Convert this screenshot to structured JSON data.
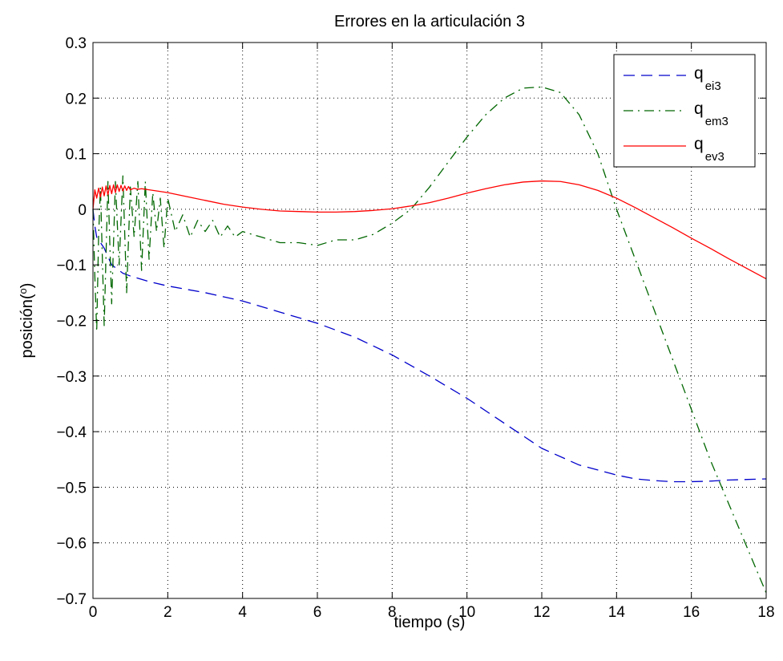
{
  "chart_data": {
    "type": "line",
    "title": "Errores en la articulación 3",
    "xlabel": "tiempo (s)",
    "ylabel": "posición(",
    "ylabel_sup": "o",
    "ylabel_close": ")",
    "xlim": [
      0,
      18
    ],
    "ylim": [
      -0.7,
      0.3
    ],
    "xticks": [
      0,
      2,
      4,
      6,
      8,
      10,
      12,
      14,
      16,
      18
    ],
    "yticks": [
      -0.7,
      -0.6,
      -0.5,
      -0.4,
      -0.3,
      -0.2,
      -0.1,
      0,
      0.1,
      0.2,
      0.3
    ],
    "xtick_labels": [
      "0",
      "2",
      "4",
      "6",
      "8",
      "10",
      "12",
      "14",
      "16",
      "18"
    ],
    "ytick_labels": [
      "−0.7",
      "−0.6",
      "−0.5",
      "−0.4",
      "−0.3",
      "−0.2",
      "−0.1",
      "0",
      "0.1",
      "0.2",
      "0.3"
    ],
    "grid": true,
    "legend_position": "top-right",
    "series": [
      {
        "legend_main": "q",
        "legend_sub": "ei3",
        "color": "#0000cc",
        "dash": "dashed",
        "x": [
          0,
          0.05,
          0.1,
          0.2,
          0.3,
          0.5,
          0.8,
          1,
          1.5,
          2,
          3,
          4,
          5,
          6,
          7,
          8,
          9,
          10,
          11,
          12,
          13,
          14,
          14.5,
          15,
          15.5,
          16,
          16.5,
          17,
          17.5,
          18
        ],
        "y": [
          0,
          -0.03,
          -0.05,
          -0.06,
          -0.07,
          -0.1,
          -0.115,
          -0.12,
          -0.13,
          -0.138,
          -0.15,
          -0.165,
          -0.185,
          -0.205,
          -0.23,
          -0.262,
          -0.3,
          -0.34,
          -0.385,
          -0.43,
          -0.46,
          -0.478,
          -0.485,
          -0.488,
          -0.49,
          -0.49,
          -0.489,
          -0.487,
          -0.486,
          -0.485
        ]
      },
      {
        "legend_main": "q",
        "legend_sub": "em3",
        "color": "#006600",
        "dash": "dashdot",
        "x": [
          0,
          0.05,
          0.1,
          0.15,
          0.2,
          0.3,
          0.4,
          0.5,
          0.6,
          0.7,
          0.8,
          0.9,
          1.0,
          1.1,
          1.2,
          1.3,
          1.4,
          1.5,
          1.6,
          1.7,
          1.8,
          1.9,
          2.0,
          2.2,
          2.4,
          2.6,
          2.8,
          3.0,
          3.2,
          3.4,
          3.6,
          3.8,
          4.0,
          4.5,
          5.0,
          5.5,
          6.0,
          6.5,
          7.0,
          7.5,
          8.0,
          8.5,
          9.0,
          9.5,
          10,
          10.5,
          11,
          11.5,
          12,
          12.5,
          13,
          13.5,
          14,
          14.5,
          15,
          15.5,
          16,
          16.5,
          17,
          17.5,
          18
        ],
        "y": [
          0,
          -0.12,
          -0.22,
          -0.05,
          0.04,
          -0.21,
          0.05,
          -0.17,
          0.05,
          -0.1,
          0.06,
          -0.15,
          0.04,
          -0.05,
          0.05,
          -0.11,
          0.05,
          -0.09,
          0.03,
          -0.04,
          0.02,
          -0.07,
          0.02,
          -0.04,
          -0.01,
          -0.05,
          -0.02,
          -0.04,
          -0.02,
          -0.05,
          -0.03,
          -0.05,
          -0.04,
          -0.05,
          -0.06,
          -0.06,
          -0.065,
          -0.055,
          -0.055,
          -0.045,
          -0.025,
          0.0,
          0.04,
          0.085,
          0.13,
          0.17,
          0.2,
          0.218,
          0.22,
          0.21,
          0.17,
          0.1,
          0.0,
          -0.09,
          -0.18,
          -0.27,
          -0.36,
          -0.45,
          -0.53,
          -0.61,
          -0.69
        ]
      },
      {
        "legend_main": "q",
        "legend_sub": "ev3",
        "color": "#ff0000",
        "dash": "solid",
        "x": [
          0,
          0.05,
          0.1,
          0.15,
          0.2,
          0.25,
          0.3,
          0.35,
          0.4,
          0.45,
          0.5,
          0.55,
          0.6,
          0.65,
          0.7,
          0.75,
          0.8,
          0.85,
          0.9,
          0.95,
          1.0,
          1.1,
          1.2,
          1.3,
          1.4,
          1.5,
          1.7,
          2.0,
          2.5,
          3.0,
          3.5,
          4.0,
          4.5,
          5.0,
          5.5,
          6.0,
          6.5,
          7.0,
          7.5,
          8.0,
          8.5,
          9.0,
          9.5,
          10,
          10.5,
          11,
          11.5,
          12,
          12.5,
          13,
          13.5,
          14,
          14.5,
          15,
          15.5,
          16,
          16.5,
          17,
          17.5,
          18
        ],
        "y": [
          0,
          0.035,
          0.02,
          0.038,
          0.022,
          0.04,
          0.024,
          0.042,
          0.026,
          0.043,
          0.028,
          0.044,
          0.03,
          0.044,
          0.032,
          0.043,
          0.033,
          0.042,
          0.034,
          0.041,
          0.035,
          0.038,
          0.036,
          0.037,
          0.036,
          0.035,
          0.033,
          0.03,
          0.023,
          0.016,
          0.009,
          0.004,
          0.0,
          -0.003,
          -0.004,
          -0.005,
          -0.005,
          -0.004,
          -0.002,
          0.001,
          0.006,
          0.012,
          0.02,
          0.029,
          0.037,
          0.044,
          0.049,
          0.051,
          0.05,
          0.044,
          0.034,
          0.02,
          0.003,
          -0.015,
          -0.033,
          -0.052,
          -0.07,
          -0.089,
          -0.107,
          -0.125
        ]
      }
    ]
  }
}
